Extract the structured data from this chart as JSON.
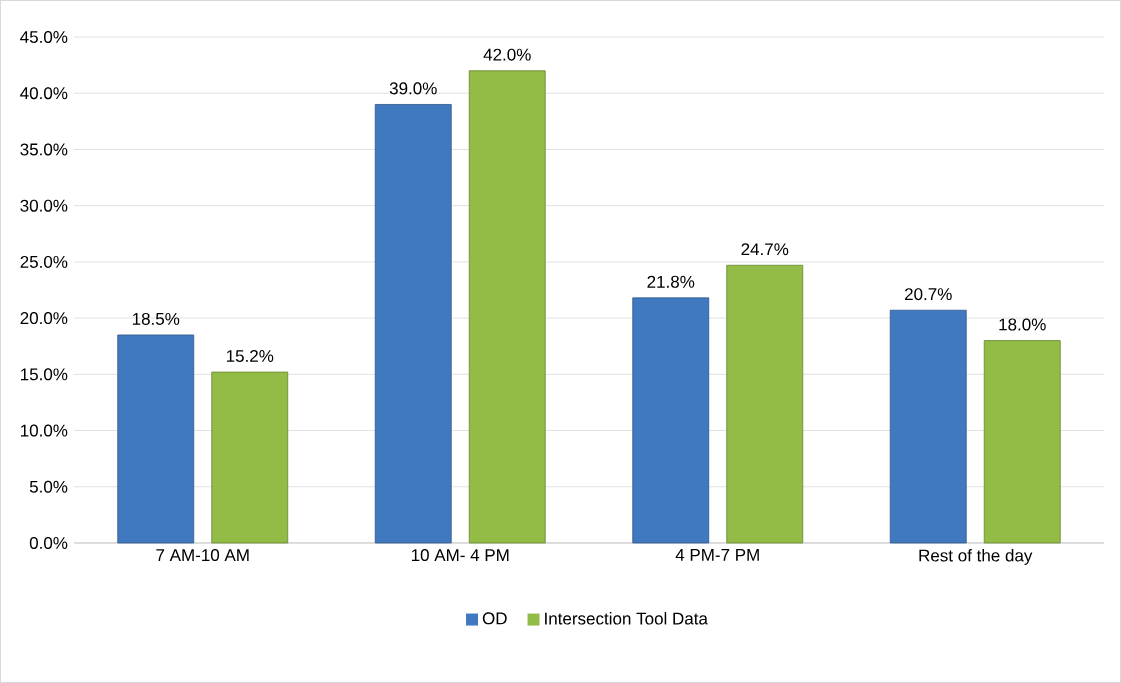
{
  "chart_data": {
    "type": "bar",
    "categories": [
      "7 AM-10 AM",
      "10 AM- 4 PM",
      "4 PM-7 PM",
      "Rest of the day"
    ],
    "series": [
      {
        "name": "OD",
        "color": "#4179c0",
        "values": [
          18.5,
          39.0,
          21.8,
          20.7
        ],
        "value_labels": [
          "18.5%",
          "39.0%",
          "21.8%",
          "20.7%"
        ]
      },
      {
        "name": "Intersection Tool Data",
        "color": "#92bc45",
        "values": [
          15.2,
          42.0,
          24.7,
          18.0
        ],
        "value_labels": [
          "15.2%",
          "42.0%",
          "24.7%",
          "18.0%"
        ]
      }
    ],
    "ylim": [
      0,
      45
    ],
    "yticks": [
      {
        "value": 0,
        "label": "0.0%"
      },
      {
        "value": 5,
        "label": "5.0%"
      },
      {
        "value": 10,
        "label": "10.0%"
      },
      {
        "value": 15,
        "label": "15.0%"
      },
      {
        "value": 20,
        "label": "20.0%"
      },
      {
        "value": 25,
        "label": "25.0%"
      },
      {
        "value": 30,
        "label": "30.0%"
      },
      {
        "value": 35,
        "label": "35.0%"
      },
      {
        "value": 40,
        "label": "40.0%"
      },
      {
        "value": 45,
        "label": "45.0%"
      }
    ],
    "grid": "y",
    "legend": "bottom"
  }
}
